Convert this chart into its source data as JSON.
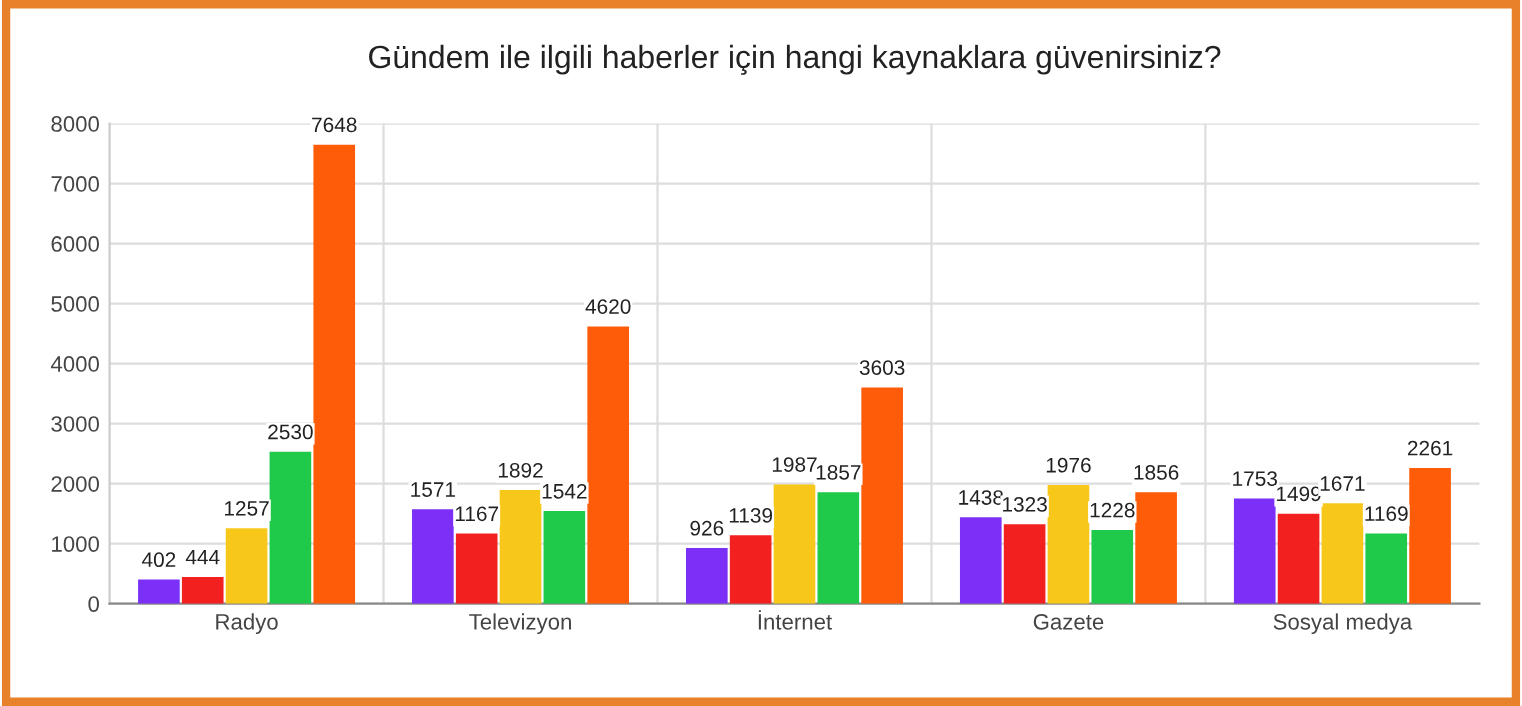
{
  "chart_data": {
    "type": "bar",
    "title": "Gündem ile ilgili haberler için hangi kaynaklara güvenirsiniz?",
    "categories": [
      "Radyo",
      "Televizyon",
      "İnternet",
      "Gazete",
      "Sosyal medya"
    ],
    "series": [
      {
        "color": "#7b2ff7",
        "values": [
          402,
          1571,
          926,
          1438,
          1753
        ]
      },
      {
        "color": "#f2201f",
        "values": [
          444,
          1167,
          1139,
          1323,
          1499
        ]
      },
      {
        "color": "#f7c81a",
        "values": [
          1257,
          1892,
          1987,
          1976,
          1671
        ]
      },
      {
        "color": "#1fc94a",
        "values": [
          2530,
          1542,
          1857,
          1228,
          1169
        ]
      },
      {
        "color": "#ff5c0a",
        "values": [
          7648,
          4620,
          3603,
          1856,
          2261
        ]
      }
    ],
    "ylim": [
      0,
      8000
    ],
    "yticks": [
      0,
      1000,
      2000,
      3000,
      4000,
      5000,
      6000,
      7000,
      8000
    ],
    "grid": true,
    "data_labels": true
  }
}
